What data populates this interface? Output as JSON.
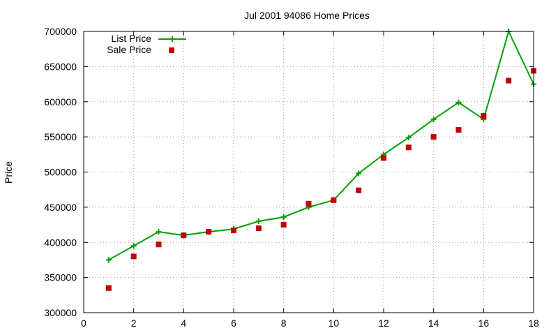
{
  "chart_data": {
    "type": "line",
    "title": "Jul 2001 94086 Home Prices",
    "xlabel": "",
    "ylabel": "Price",
    "xlim": [
      0,
      18
    ],
    "ylim": [
      300000,
      700000
    ],
    "x_ticks": [
      0,
      2,
      4,
      6,
      8,
      10,
      12,
      14,
      16,
      18
    ],
    "y_ticks": [
      300000,
      350000,
      400000,
      450000,
      500000,
      550000,
      600000,
      650000,
      700000
    ],
    "grid": true,
    "legend_position": "top-left",
    "series": [
      {
        "name": "List Price",
        "style": "line+cross",
        "color": "#00a000",
        "x": [
          1,
          2,
          3,
          4,
          5,
          6,
          7,
          8,
          9,
          10,
          11,
          12,
          13,
          14,
          15,
          16,
          17,
          18
        ],
        "y": [
          375000,
          395000,
          415000,
          410000,
          415000,
          419000,
          430000,
          436000,
          450000,
          460000,
          498000,
          525000,
          549000,
          575000,
          599000,
          575000,
          700000,
          625000
        ]
      },
      {
        "name": "Sale Price",
        "style": "square-points",
        "color": "#c00000",
        "x": [
          1,
          2,
          3,
          4,
          5,
          6,
          7,
          8,
          9,
          10,
          11,
          12,
          13,
          14,
          15,
          16,
          17,
          18
        ],
        "y": [
          335000,
          380000,
          397000,
          410000,
          415000,
          417000,
          420000,
          425000,
          455000,
          460000,
          474000,
          520000,
          535000,
          550000,
          560000,
          580000,
          630000,
          644000
        ]
      }
    ]
  }
}
